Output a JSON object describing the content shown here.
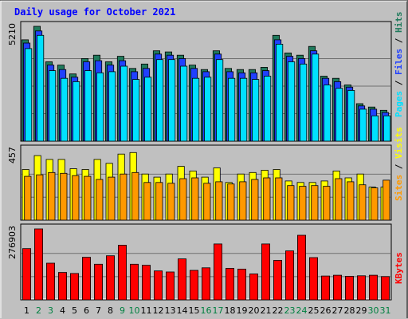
{
  "chart_data": {
    "type": "bar",
    "title": "Daily usage for October 2021",
    "x": [
      "1",
      "2",
      "3",
      "4",
      "5",
      "6",
      "7",
      "8",
      "9",
      "10",
      "11",
      "12",
      "13",
      "14",
      "15",
      "16",
      "17",
      "18",
      "19",
      "20",
      "21",
      "22",
      "23",
      "24",
      "25",
      "26",
      "27",
      "28",
      "29",
      "30",
      "31"
    ],
    "weekend_days": [
      "2",
      "3",
      "9",
      "10",
      "16",
      "17",
      "23",
      "24",
      "30",
      "31"
    ],
    "panels": [
      {
        "id": "hits",
        "ymax_label": "5210",
        "ymax": 5210,
        "side_legend": [
          "Pages",
          "Files",
          "Hits"
        ],
        "series": [
          {
            "name": "Hits",
            "color": "#1f7a5c",
            "values": [
              4600,
              5210,
              3600,
              3450,
              3050,
              3750,
              3900,
              3600,
              3850,
              3300,
              3500,
              4100,
              4050,
              3900,
              3450,
              3250,
              4100,
              3300,
              3250,
              3250,
              3350,
              4800,
              4000,
              3900,
              4300,
              2950,
              2850,
              2550,
              1700,
              1550,
              1400
            ]
          },
          {
            "name": "Files",
            "color": "#2040ff",
            "values": [
              4450,
              5000,
              3450,
              3250,
              2900,
              3600,
              3650,
              3450,
              3650,
              3150,
              3300,
              3950,
              3900,
              3750,
              3300,
              3150,
              3950,
              3150,
              3100,
              3100,
              3200,
              4600,
              3850,
              3750,
              4100,
              2850,
              2700,
              2450,
              1600,
              1450,
              1300
            ]
          },
          {
            "name": "Pages",
            "color": "#00e0ff",
            "values": [
              4200,
              4800,
              3200,
              2850,
              2700,
              3200,
              3100,
              3150,
              3400,
              2800,
              2900,
              3700,
              3700,
              3400,
              2850,
              2900,
              3700,
              2850,
              2850,
              2800,
              2950,
              4400,
              3600,
              3500,
              3950,
              2550,
              2400,
              2300,
              1450,
              1150,
              1150
            ]
          }
        ]
      },
      {
        "id": "visits",
        "ymax_label": "457",
        "ymax": 457,
        "side_legend": [
          "Sites",
          "Visits"
        ],
        "series": [
          {
            "name": "Visits",
            "color": "#ffff00",
            "values": [
              330,
              420,
              395,
              395,
              335,
              330,
              395,
              370,
              430,
              440,
              300,
              280,
              300,
              350,
              320,
              280,
              340,
              245,
              300,
              310,
              325,
              330,
              255,
              245,
              245,
              255,
              320,
              275,
              300,
              215,
              215
            ]
          },
          {
            "name": "Sites",
            "color": "#ff9900",
            "values": [
              285,
              295,
              310,
              305,
              290,
              285,
              265,
              280,
              300,
              310,
              245,
              245,
              240,
              270,
              275,
              240,
              250,
              235,
              250,
              265,
              275,
              275,
              225,
              220,
              225,
              220,
              270,
              250,
              230,
              210,
              260
            ]
          }
        ]
      },
      {
        "id": "kbytes",
        "ymax_label": "276903",
        "ymax": 276903,
        "side_legend": [
          "KBytes"
        ],
        "series": [
          {
            "name": "KBytes",
            "color": "#ff0000",
            "values": [
              200000,
              276903,
              143000,
              107000,
              103000,
              166000,
              139000,
              172000,
              213000,
              139000,
              135000,
              113000,
              109000,
              160000,
              115000,
              125000,
              218000,
              123000,
              120000,
              101000,
              218000,
              154000,
              191000,
              252000,
              165000,
              93000,
              96000,
              92000,
              94000,
              96000,
              91000
            ]
          }
        ]
      }
    ]
  },
  "colors": {
    "background": "#c0c0c0",
    "plot_background": "#c0c0c0",
    "title": "#0000ff",
    "weekday_label": "#000000",
    "weekend_label": "#008040",
    "grid": "#707070"
  }
}
